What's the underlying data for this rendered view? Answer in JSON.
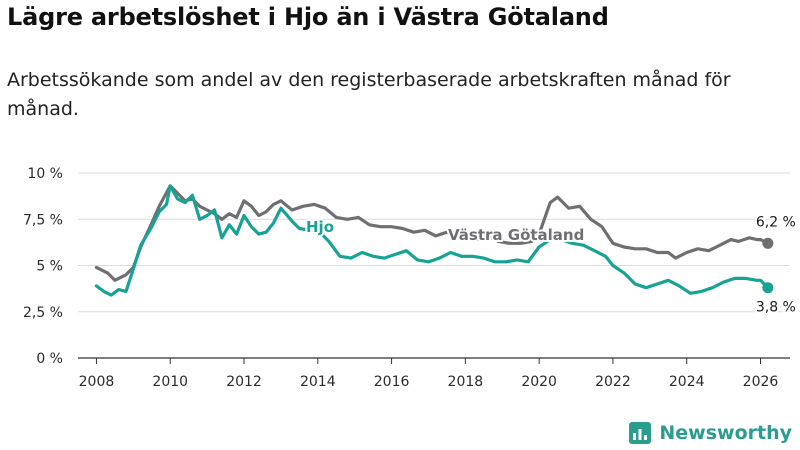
{
  "title": "Lägre arbetslöshet i Hjo än i Västra Götaland",
  "subtitle": "Arbetssökande som andel av den registerbaserade arbetskraften månad för månad.",
  "brand": {
    "name": "Newsworthy",
    "icon": "bar-chart-logo-icon"
  },
  "colors": {
    "hjo": "#16a394",
    "vg": "#6f6f73",
    "grid": "#dcdcdc",
    "axis": "#333333"
  },
  "chart_data": {
    "type": "line",
    "title": "Lägre arbetslöshet i Hjo än i Västra Götaland",
    "xlabel": "",
    "ylabel": "",
    "xlim": [
      2007.5,
      2026.8
    ],
    "ylim": [
      0,
      10
    ],
    "y_ticks": [
      0,
      2.5,
      5,
      7.5,
      10
    ],
    "y_tick_labels": [
      "0 %",
      "2,5 %",
      "5 %",
      "7,5 %",
      "10 %"
    ],
    "x_ticks": [
      2008,
      2010,
      2012,
      2014,
      2016,
      2018,
      2020,
      2022,
      2024,
      2026
    ],
    "x_tick_labels": [
      "2008",
      "2010",
      "2012",
      "2014",
      "2016",
      "2018",
      "2020",
      "2022",
      "2024",
      "2026"
    ],
    "series": [
      {
        "name": "Västra Götaland",
        "label": "Västra Götaland",
        "end_label": "6,2 %",
        "points": [
          [
            2008.0,
            4.9
          ],
          [
            2008.3,
            4.6
          ],
          [
            2008.5,
            4.2
          ],
          [
            2008.8,
            4.5
          ],
          [
            2009.0,
            4.9
          ],
          [
            2009.2,
            6.0
          ],
          [
            2009.5,
            7.3
          ],
          [
            2009.7,
            8.2
          ],
          [
            2010.0,
            9.3
          ],
          [
            2010.2,
            8.9
          ],
          [
            2010.4,
            8.5
          ],
          [
            2010.6,
            8.6
          ],
          [
            2010.8,
            8.2
          ],
          [
            2011.0,
            8.0
          ],
          [
            2011.2,
            7.8
          ],
          [
            2011.4,
            7.5
          ],
          [
            2011.6,
            7.8
          ],
          [
            2011.8,
            7.6
          ],
          [
            2012.0,
            8.5
          ],
          [
            2012.2,
            8.2
          ],
          [
            2012.4,
            7.7
          ],
          [
            2012.6,
            7.9
          ],
          [
            2012.8,
            8.3
          ],
          [
            2013.0,
            8.5
          ],
          [
            2013.3,
            8.0
          ],
          [
            2013.6,
            8.2
          ],
          [
            2013.9,
            8.3
          ],
          [
            2014.2,
            8.1
          ],
          [
            2014.5,
            7.6
          ],
          [
            2014.8,
            7.5
          ],
          [
            2015.1,
            7.6
          ],
          [
            2015.4,
            7.2
          ],
          [
            2015.7,
            7.1
          ],
          [
            2016.0,
            7.1
          ],
          [
            2016.3,
            7.0
          ],
          [
            2016.6,
            6.8
          ],
          [
            2016.9,
            6.9
          ],
          [
            2017.2,
            6.6
          ],
          [
            2017.5,
            6.8
          ],
          [
            2017.8,
            6.5
          ],
          [
            2018.0,
            6.5
          ],
          [
            2018.3,
            6.4
          ],
          [
            2018.6,
            6.6
          ],
          [
            2018.9,
            6.3
          ],
          [
            2019.2,
            6.2
          ],
          [
            2019.5,
            6.2
          ],
          [
            2019.8,
            6.3
          ],
          [
            2020.0,
            6.7
          ],
          [
            2020.3,
            8.4
          ],
          [
            2020.5,
            8.7
          ],
          [
            2020.8,
            8.1
          ],
          [
            2021.1,
            8.2
          ],
          [
            2021.4,
            7.5
          ],
          [
            2021.7,
            7.1
          ],
          [
            2022.0,
            6.2
          ],
          [
            2022.3,
            6.0
          ],
          [
            2022.6,
            5.9
          ],
          [
            2022.9,
            5.9
          ],
          [
            2023.2,
            5.7
          ],
          [
            2023.5,
            5.7
          ],
          [
            2023.7,
            5.4
          ],
          [
            2024.0,
            5.7
          ],
          [
            2024.3,
            5.9
          ],
          [
            2024.6,
            5.8
          ],
          [
            2024.9,
            6.1
          ],
          [
            2025.2,
            6.4
          ],
          [
            2025.4,
            6.3
          ],
          [
            2025.7,
            6.5
          ],
          [
            2025.9,
            6.4
          ],
          [
            2026.0,
            6.4
          ],
          [
            2026.2,
            6.2
          ]
        ]
      },
      {
        "name": "Hjo",
        "label": "Hjo",
        "end_label": "3,8 %",
        "points": [
          [
            2008.0,
            3.9
          ],
          [
            2008.2,
            3.6
          ],
          [
            2008.4,
            3.4
          ],
          [
            2008.6,
            3.7
          ],
          [
            2008.8,
            3.6
          ],
          [
            2009.0,
            4.8
          ],
          [
            2009.2,
            6.1
          ],
          [
            2009.5,
            7.1
          ],
          [
            2009.7,
            7.9
          ],
          [
            2009.9,
            8.3
          ],
          [
            2010.0,
            9.3
          ],
          [
            2010.2,
            8.6
          ],
          [
            2010.4,
            8.4
          ],
          [
            2010.6,
            8.8
          ],
          [
            2010.8,
            7.5
          ],
          [
            2011.0,
            7.7
          ],
          [
            2011.2,
            8.0
          ],
          [
            2011.4,
            6.5
          ],
          [
            2011.6,
            7.2
          ],
          [
            2011.8,
            6.7
          ],
          [
            2012.0,
            7.7
          ],
          [
            2012.2,
            7.1
          ],
          [
            2012.4,
            6.7
          ],
          [
            2012.6,
            6.8
          ],
          [
            2012.8,
            7.3
          ],
          [
            2013.0,
            8.1
          ],
          [
            2013.3,
            7.4
          ],
          [
            2013.5,
            7.0
          ],
          [
            2013.8,
            6.9
          ],
          [
            2014.0,
            6.9
          ],
          [
            2014.3,
            6.3
          ],
          [
            2014.6,
            5.5
          ],
          [
            2014.9,
            5.4
          ],
          [
            2015.2,
            5.7
          ],
          [
            2015.5,
            5.5
          ],
          [
            2015.8,
            5.4
          ],
          [
            2016.1,
            5.6
          ],
          [
            2016.4,
            5.8
          ],
          [
            2016.7,
            5.3
          ],
          [
            2017.0,
            5.2
          ],
          [
            2017.3,
            5.4
          ],
          [
            2017.6,
            5.7
          ],
          [
            2017.9,
            5.5
          ],
          [
            2018.2,
            5.5
          ],
          [
            2018.5,
            5.4
          ],
          [
            2018.8,
            5.2
          ],
          [
            2019.1,
            5.2
          ],
          [
            2019.4,
            5.3
          ],
          [
            2019.7,
            5.2
          ],
          [
            2020.0,
            6.0
          ],
          [
            2020.3,
            6.4
          ],
          [
            2020.6,
            6.4
          ],
          [
            2020.9,
            6.2
          ],
          [
            2021.2,
            6.1
          ],
          [
            2021.5,
            5.8
          ],
          [
            2021.8,
            5.5
          ],
          [
            2022.0,
            5.0
          ],
          [
            2022.3,
            4.6
          ],
          [
            2022.6,
            4.0
          ],
          [
            2022.9,
            3.8
          ],
          [
            2023.2,
            4.0
          ],
          [
            2023.5,
            4.2
          ],
          [
            2023.8,
            3.9
          ],
          [
            2024.1,
            3.5
          ],
          [
            2024.4,
            3.6
          ],
          [
            2024.7,
            3.8
          ],
          [
            2025.0,
            4.1
          ],
          [
            2025.3,
            4.3
          ],
          [
            2025.6,
            4.3
          ],
          [
            2025.9,
            4.2
          ],
          [
            2026.0,
            4.2
          ],
          [
            2026.2,
            3.8
          ]
        ]
      }
    ]
  }
}
